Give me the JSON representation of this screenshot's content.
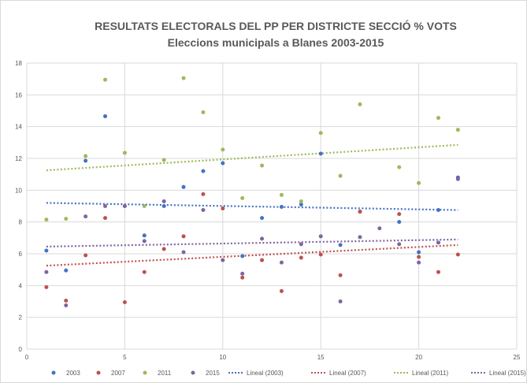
{
  "chart_data": {
    "type": "scatter",
    "title": "RESULTATS ELECTORALS DEL PP PER DISTRICTE SECCIÓ % VOTS",
    "subtitle": "Eleccions municipals a Blanes 2003-2015",
    "xlabel": "",
    "ylabel": "",
    "xlim": [
      0,
      25
    ],
    "ylim": [
      0,
      18
    ],
    "x_ticks": [
      "0",
      "5",
      "10",
      "15",
      "20",
      "25"
    ],
    "y_ticks": [
      "0",
      "2",
      "4",
      "6",
      "8",
      "10",
      "12",
      "14",
      "16",
      "18"
    ],
    "grid": "vertical and horizontal major gridlines",
    "legend_position": "bottom",
    "series": [
      {
        "name": "2003",
        "color": "#4472C4",
        "points": [
          [
            1,
            6.2
          ],
          [
            2,
            4.95
          ],
          [
            3,
            11.85
          ],
          [
            4,
            14.65
          ],
          [
            5,
            9.0
          ],
          [
            6,
            7.15
          ],
          [
            7,
            9.0
          ],
          [
            8,
            10.2
          ],
          [
            9,
            11.2
          ],
          [
            10,
            11.7
          ],
          [
            11,
            5.85
          ],
          [
            12,
            8.25
          ],
          [
            13,
            8.95
          ],
          [
            14,
            9.1
          ],
          [
            15,
            12.3
          ],
          [
            16,
            6.55
          ],
          [
            17,
            8.65
          ],
          [
            19,
            8.0
          ],
          [
            20,
            6.1
          ],
          [
            21,
            8.75
          ],
          [
            22,
            10.8
          ]
        ]
      },
      {
        "name": "2007",
        "color": "#C0504D",
        "points": [
          [
            1,
            3.9
          ],
          [
            2,
            3.05
          ],
          [
            3,
            5.9
          ],
          [
            4,
            8.25
          ],
          [
            5,
            2.95
          ],
          [
            6,
            4.85
          ],
          [
            7,
            6.3
          ],
          [
            8,
            7.1
          ],
          [
            9,
            9.75
          ],
          [
            10,
            8.85
          ],
          [
            11,
            4.5
          ],
          [
            12,
            5.6
          ],
          [
            13,
            3.65
          ],
          [
            14,
            5.75
          ],
          [
            15,
            5.95
          ],
          [
            16,
            4.65
          ],
          [
            17,
            8.65
          ],
          [
            19,
            8.5
          ],
          [
            20,
            5.8
          ],
          [
            21,
            4.85
          ],
          [
            22,
            5.95
          ]
        ]
      },
      {
        "name": "2011",
        "color": "#9BBB59",
        "points": [
          [
            1,
            8.15
          ],
          [
            2,
            8.2
          ],
          [
            3,
            12.15
          ],
          [
            4,
            16.95
          ],
          [
            5,
            12.35
          ],
          [
            6,
            9.0
          ],
          [
            7,
            11.9
          ],
          [
            8,
            17.05
          ],
          [
            9,
            14.9
          ],
          [
            10,
            12.55
          ],
          [
            11,
            9.5
          ],
          [
            12,
            11.55
          ],
          [
            13,
            9.7
          ],
          [
            14,
            9.3
          ],
          [
            15,
            13.6
          ],
          [
            16,
            10.9
          ],
          [
            17,
            15.4
          ],
          [
            19,
            11.45
          ],
          [
            20,
            10.45
          ],
          [
            21,
            14.55
          ],
          [
            22,
            13.8
          ]
        ]
      },
      {
        "name": "2015",
        "color": "#8064A2",
        "points": [
          [
            1,
            4.85
          ],
          [
            2,
            2.75
          ],
          [
            3,
            8.35
          ],
          [
            4,
            9.0
          ],
          [
            5,
            9.0
          ],
          [
            6,
            6.8
          ],
          [
            7,
            9.3
          ],
          [
            8,
            6.1
          ],
          [
            9,
            8.75
          ],
          [
            10,
            5.6
          ],
          [
            11,
            4.75
          ],
          [
            12,
            6.95
          ],
          [
            13,
            5.45
          ],
          [
            14,
            6.6
          ],
          [
            15,
            7.1
          ],
          [
            16,
            3.0
          ],
          [
            17,
            7.05
          ],
          [
            18,
            7.6
          ],
          [
            19,
            6.6
          ],
          [
            20,
            5.45
          ],
          [
            21,
            6.7
          ],
          [
            22,
            10.7
          ]
        ]
      }
    ],
    "trendlines": [
      {
        "name": "Lineal (2003)",
        "color": "#4472C4",
        "x": [
          1,
          22
        ],
        "y": [
          9.2,
          8.75
        ]
      },
      {
        "name": "Lineal (2007)",
        "color": "#C0504D",
        "x": [
          1,
          22
        ],
        "y": [
          5.25,
          6.55
        ]
      },
      {
        "name": "Lineal (2011)",
        "color": "#9BBB59",
        "x": [
          1,
          22
        ],
        "y": [
          11.25,
          12.85
        ]
      },
      {
        "name": "Lineal (2015)",
        "color": "#8064A2",
        "x": [
          1,
          22
        ],
        "y": [
          6.45,
          6.9
        ]
      }
    ]
  }
}
